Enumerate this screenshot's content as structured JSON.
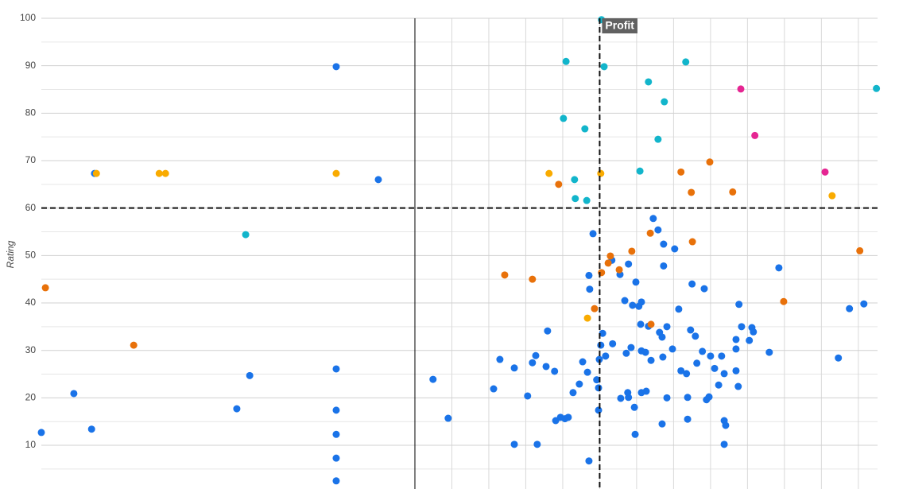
{
  "chart_data": {
    "type": "scatter",
    "y_label": "Rating",
    "xlim": [
      -10.11,
      12.52
    ],
    "ylim": [
      0,
      100
    ],
    "xticks": [
      1,
      2,
      3,
      4,
      5,
      6,
      7,
      8,
      9,
      10,
      11,
      12
    ],
    "yticks": [
      10,
      20,
      30,
      40,
      50,
      60,
      70,
      80,
      90,
      100
    ],
    "yminorticks": [
      5,
      15,
      25,
      35,
      45,
      55,
      65,
      75,
      85,
      95
    ],
    "grid": true,
    "reference_lines": [
      {
        "axis": "x",
        "value": 0,
        "style": "solid"
      },
      {
        "axis": "y",
        "value": 60,
        "style": "dashed"
      },
      {
        "axis": "x",
        "value": 5,
        "style": "dashed",
        "label": "Profit"
      }
    ],
    "series": [
      {
        "color": "#1a73e8",
        "x": [
          -10.11,
          -9.23,
          -8.75,
          -8.67,
          -4.82,
          -4.47,
          -2.13,
          -2.13,
          -2.13,
          -2.13,
          -2.13,
          -2.13,
          -0.99,
          0.49,
          0.9,
          2.13,
          2.3,
          2.69,
          2.69,
          3.05,
          3.18,
          3.27,
          3.31,
          3.55,
          3.59,
          3.78,
          3.81,
          3.94,
          4.06,
          4.15,
          4.28,
          4.45,
          4.54,
          4.67,
          4.71,
          4.73,
          4.71,
          4.82,
          4.92,
          4.97,
          4.97,
          4.99,
          5.03,
          5.08,
          5.16,
          5.33,
          5.35,
          5.55,
          5.57,
          5.68,
          5.72,
          5.76,
          5.78,
          5.78,
          5.85,
          5.89,
          5.94,
          5.96,
          5.98,
          6.06,
          6.11,
          6.13,
          6.13,
          6.13,
          6.24,
          6.26,
          6.32,
          6.39,
          6.45,
          6.58,
          6.62,
          6.69,
          6.69,
          6.71,
          6.73,
          6.73,
          6.82,
          6.82,
          6.97,
          7.03,
          7.14,
          7.2,
          7.35,
          7.38,
          7.38,
          7.46,
          7.5,
          7.59,
          7.63,
          7.78,
          7.83,
          7.89,
          7.96,
          8.0,
          8.11,
          8.22,
          8.3,
          8.37,
          8.37,
          8.41,
          8.37,
          8.69,
          8.69,
          8.69,
          8.75,
          8.77,
          8.84,
          9.05,
          9.12,
          9.16,
          9.59,
          9.85,
          11.46,
          11.76,
          12.15
        ],
        "y": [
          12.7,
          20.9,
          13.4,
          67.3,
          17.7,
          24.7,
          89.8,
          26.1,
          17.4,
          12.3,
          7.3,
          2.5,
          66.0,
          23.9,
          15.7,
          21.9,
          28.1,
          26.3,
          10.2,
          20.4,
          27.4,
          28.9,
          10.2,
          26.6,
          34.1,
          25.6,
          15.2,
          15.9,
          15.6,
          15.9,
          21.1,
          22.9,
          27.6,
          25.4,
          45.8,
          42.9,
          6.7,
          54.6,
          23.8,
          22.1,
          17.4,
          28.1,
          31.1,
          33.6,
          28.8,
          49.0,
          31.4,
          46.0,
          19.9,
          40.5,
          29.4,
          21.1,
          48.2,
          20.1,
          30.6,
          39.5,
          18.0,
          12.3,
          44.4,
          39.3,
          35.5,
          40.2,
          29.9,
          21.1,
          29.6,
          21.4,
          35.1,
          27.9,
          57.8,
          55.4,
          33.8,
          32.8,
          14.5,
          28.6,
          52.4,
          47.8,
          35.0,
          20.0,
          30.3,
          51.4,
          38.7,
          25.7,
          25.1,
          20.1,
          15.5,
          34.3,
          44.0,
          33.0,
          27.3,
          29.8,
          43.0,
          19.6,
          20.2,
          28.8,
          26.2,
          22.7,
          28.8,
          25.1,
          15.2,
          14.2,
          10.2,
          32.3,
          30.3,
          25.7,
          22.4,
          39.7,
          35.0,
          32.1,
          34.8,
          33.9,
          29.6,
          47.4,
          28.4,
          38.8,
          39.8
        ]
      },
      {
        "color": "#12b5cb",
        "x": [
          -4.58,
          4.09,
          4.02,
          4.32,
          4.34,
          4.6,
          4.65,
          5.12,
          5.05,
          6.09,
          6.32,
          6.58,
          6.75,
          7.33,
          12.49
        ],
        "y": [
          54.4,
          90.9,
          78.9,
          66.0,
          62.0,
          76.7,
          61.6,
          89.8,
          99.7,
          67.8,
          86.6,
          74.5,
          82.4,
          90.8,
          85.2
        ]
      },
      {
        "color": "#e8710a",
        "x": [
          -10.0,
          -7.61,
          2.43,
          3.18,
          3.89,
          4.86,
          5.05,
          5.23,
          5.29,
          5.53,
          5.87,
          6.37,
          6.39,
          7.2,
          7.48,
          7.51,
          7.98,
          8.6,
          9.98,
          12.04
        ],
        "y": [
          43.2,
          31.1,
          45.9,
          45.0,
          65.0,
          38.8,
          46.4,
          48.4,
          49.9,
          47.0,
          50.9,
          54.7,
          35.5,
          67.6,
          63.3,
          52.9,
          69.7,
          63.4,
          40.3,
          51.0
        ]
      },
      {
        "color": "#f9ab00",
        "x": [
          -8.62,
          -6.92,
          -6.75,
          -2.13,
          3.63,
          4.67,
          5.03,
          11.29
        ],
        "y": [
          67.3,
          67.3,
          67.3,
          67.3,
          67.3,
          36.8,
          67.3,
          62.6
        ]
      },
      {
        "color": "#e52592",
        "x": [
          8.82,
          9.2,
          11.1
        ],
        "y": [
          85.1,
          75.3,
          67.6
        ]
      }
    ]
  }
}
